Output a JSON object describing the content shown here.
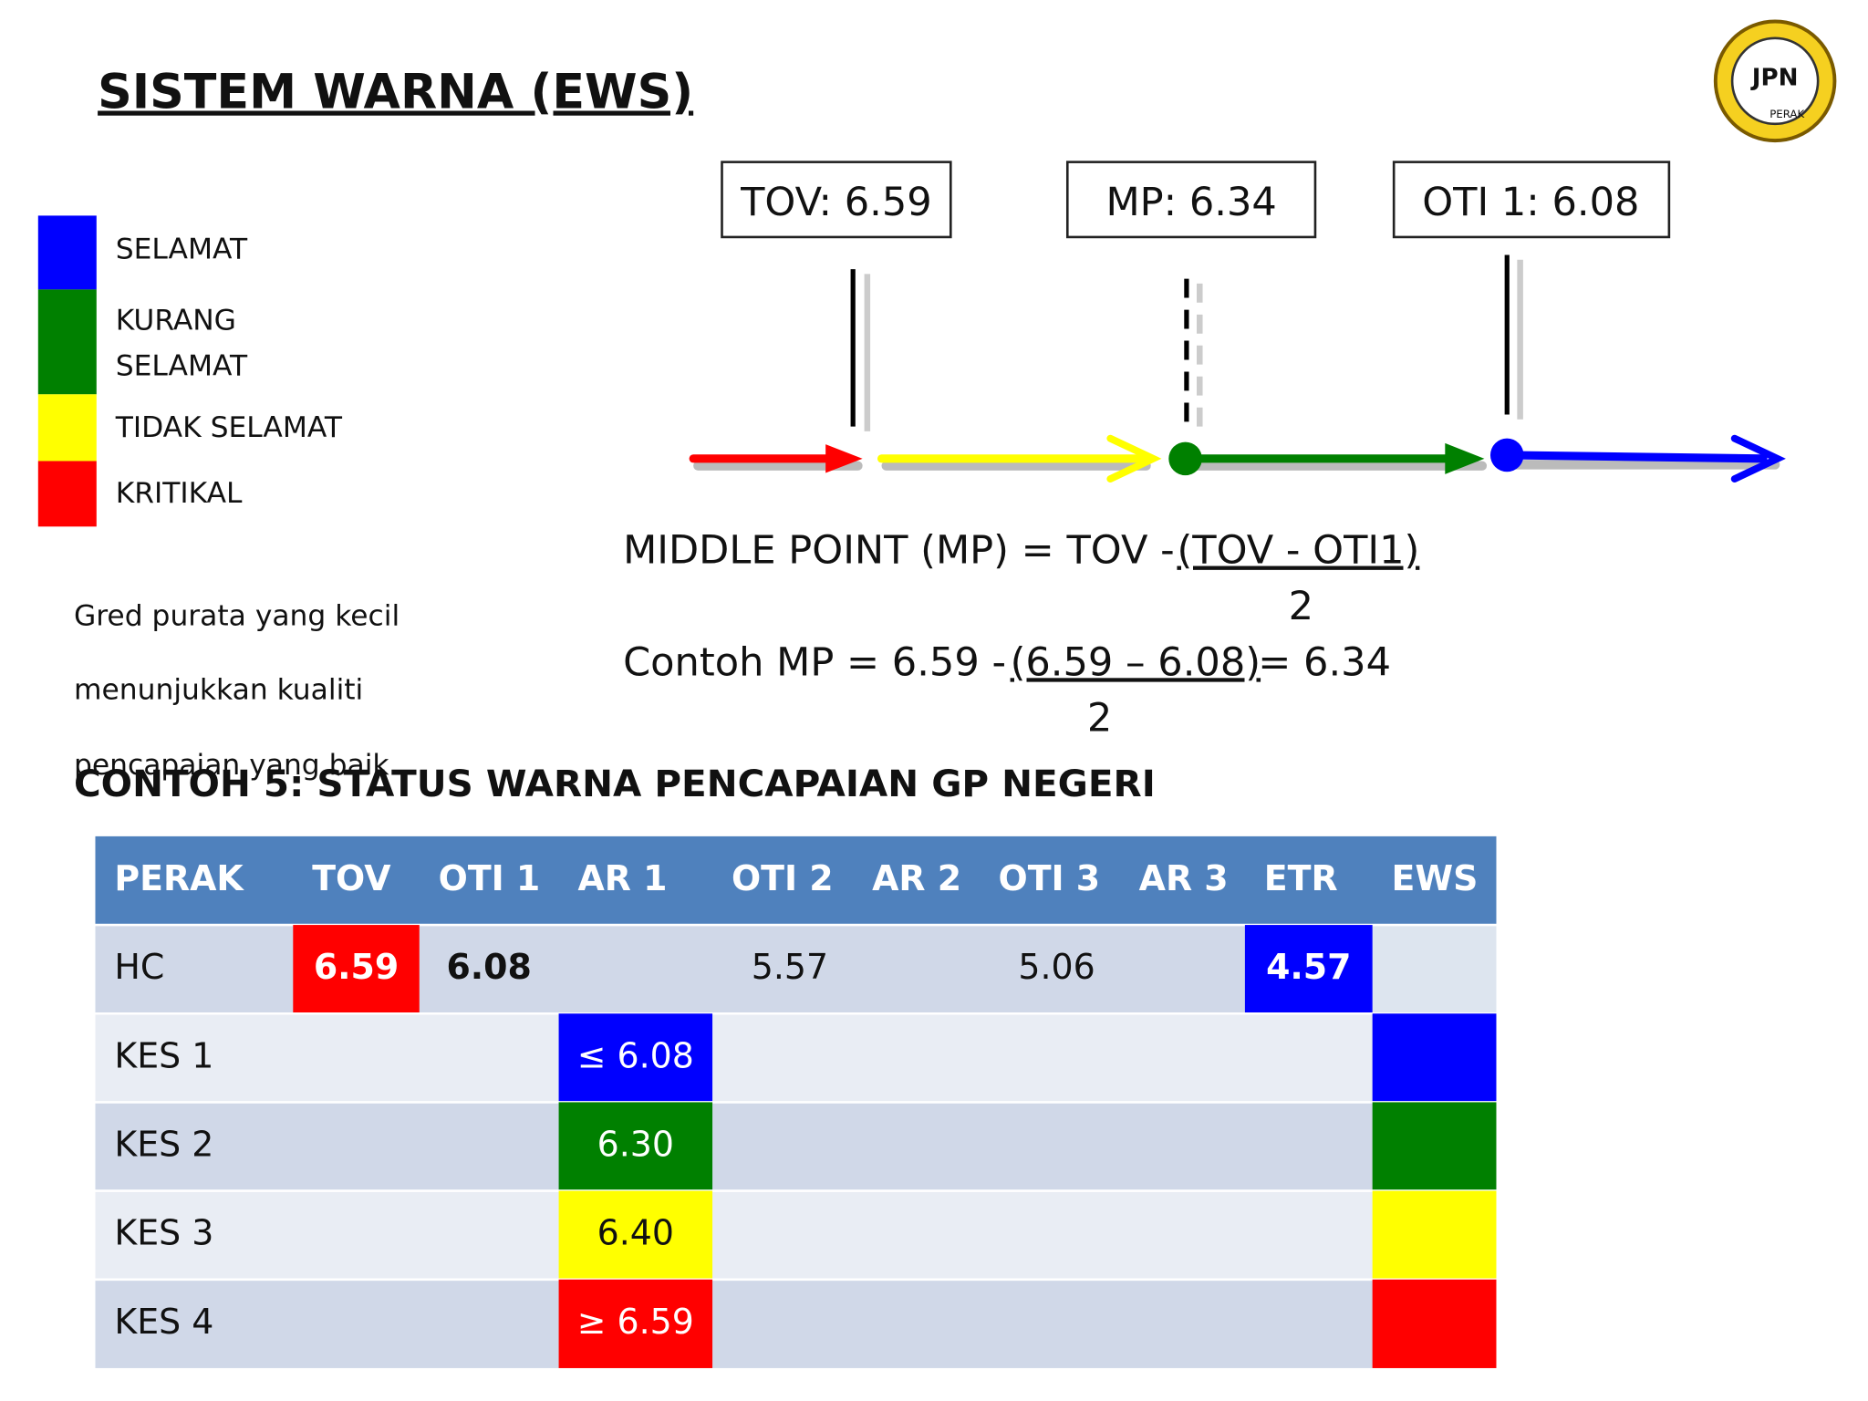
{
  "title": "SISTEM WARNA (EWS)",
  "logo": {
    "text": "JPN",
    "ring": "PERAK"
  },
  "legend": [
    "SELAMAT",
    "KURANG",
    "SELAMAT",
    "TIDAK SELAMAT",
    "KRITIKAL"
  ],
  "note": [
    "Gred purata yang kecil",
    "menunjukkan kualiti",
    "pencapaian yang baik"
  ],
  "markers": [
    "TOV: 6.59",
    "MP: 6.34",
    "OTI 1: 6.08"
  ],
  "formula": {
    "line1": "MIDDLE POINT (MP) = TOV -",
    "fraction1": "(TOV - OTI1)",
    "denominator1": "2",
    "line2": "Contoh MP = 6.59 -",
    "fraction2": "(6.59 – 6.08)",
    "result2": "= 6.34",
    "denominator2": "2"
  },
  "table": {
    "title": "CONTOH 5:  STATUS WARNA PENCAPAIAN GP NEGERI",
    "header": [
      "PERAK",
      "TOV",
      "OTI 1",
      "AR 1",
      "OTI 2",
      "AR 2",
      "OTI 3",
      "AR 3",
      "ETR",
      "EWS"
    ],
    "rows": [
      [
        "HC",
        "6.59",
        "6.08",
        null,
        "5.57",
        null,
        "5.06",
        null,
        "4.57",
        null
      ],
      [
        "KES 1",
        null,
        null,
        "≤ 6.08",
        null,
        null,
        null,
        null,
        null,
        null
      ],
      [
        "KES 2",
        null,
        null,
        "6.30",
        null,
        null,
        null,
        null,
        null,
        null
      ],
      [
        "KES 3",
        null,
        null,
        "6.40",
        null,
        null,
        null,
        null,
        null,
        null
      ],
      [
        "KES 4",
        null,
        null,
        "≥ 6.59",
        null,
        null,
        null,
        null,
        null,
        null
      ]
    ]
  }
}
